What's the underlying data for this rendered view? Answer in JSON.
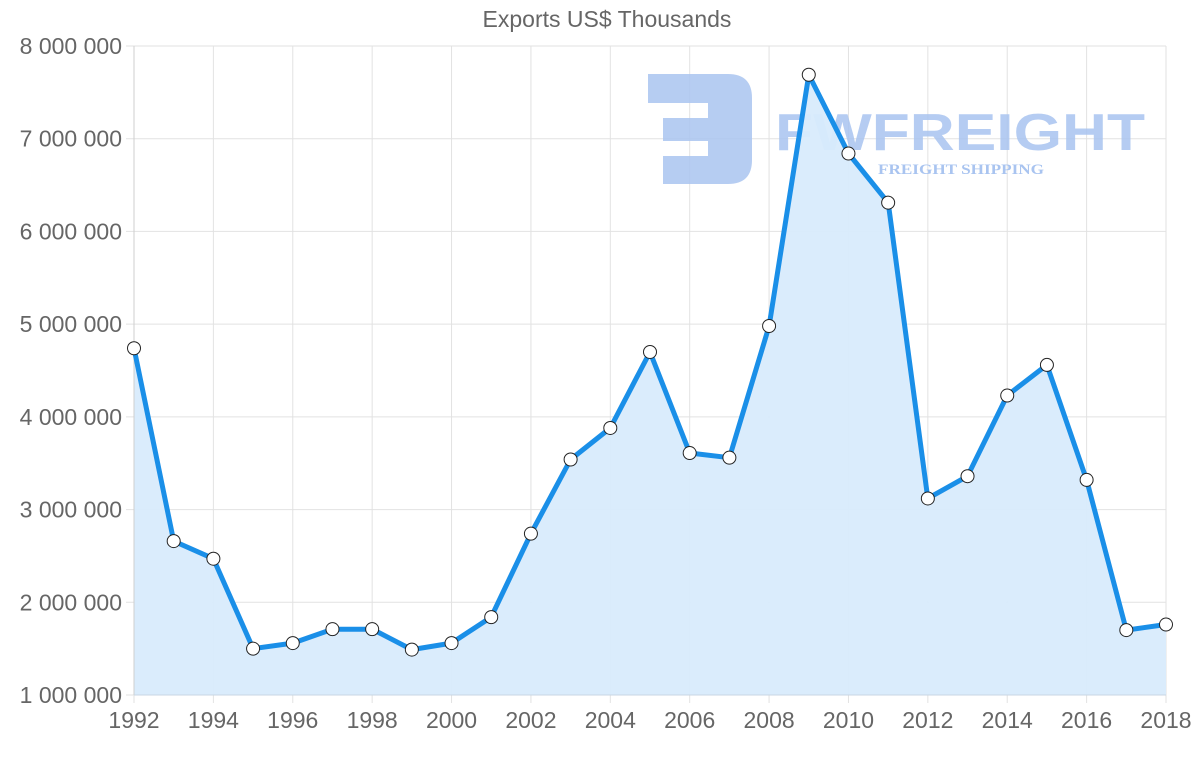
{
  "chart_data": {
    "type": "area",
    "title": "Exports US$ Thousands",
    "xlabel": "",
    "ylabel": "",
    "ylim": [
      1000000,
      8000000
    ],
    "xlim": [
      1992,
      2018
    ],
    "grid": true,
    "legend": "none",
    "y_ticks": [
      "1 000 000",
      "2 000 000",
      "3 000 000",
      "4 000 000",
      "5 000 000",
      "6 000 000",
      "7 000 000",
      "8 000 000"
    ],
    "x_ticks": [
      "1992",
      "1994",
      "1996",
      "1998",
      "2000",
      "2002",
      "2004",
      "2006",
      "2008",
      "2010",
      "2012",
      "2014",
      "2016",
      "2018"
    ],
    "x": [
      1992,
      1993,
      1994,
      1995,
      1996,
      1997,
      1998,
      1999,
      2000,
      2001,
      2002,
      2003,
      2004,
      2005,
      2006,
      2007,
      2008,
      2009,
      2010,
      2011,
      2012,
      2013,
      2014,
      2015,
      2016,
      2017,
      2018
    ],
    "series": [
      {
        "name": "Exports US$ Thousands",
        "values": [
          4740000,
          2660000,
          2470000,
          1500000,
          1560000,
          1710000,
          1710000,
          1490000,
          1560000,
          1840000,
          2740000,
          3540000,
          3880000,
          4700000,
          3610000,
          3560000,
          4980000,
          7690000,
          6840000,
          6310000,
          3120000,
          3360000,
          4230000,
          4560000,
          3320000,
          1700000,
          1760000
        ]
      }
    ]
  },
  "colors": {
    "line": "#1a8fe8",
    "fill": "#d8ebfc",
    "grid": "#e2e2e2",
    "axis": "#cfcfcf",
    "text": "#666666",
    "point_fill": "#ffffff",
    "point_stroke": "#222222",
    "watermark": "#a9c4f0"
  },
  "watermark": {
    "brand": "FWFREIGHT",
    "tagline": "FREIGHT SHIPPING"
  }
}
